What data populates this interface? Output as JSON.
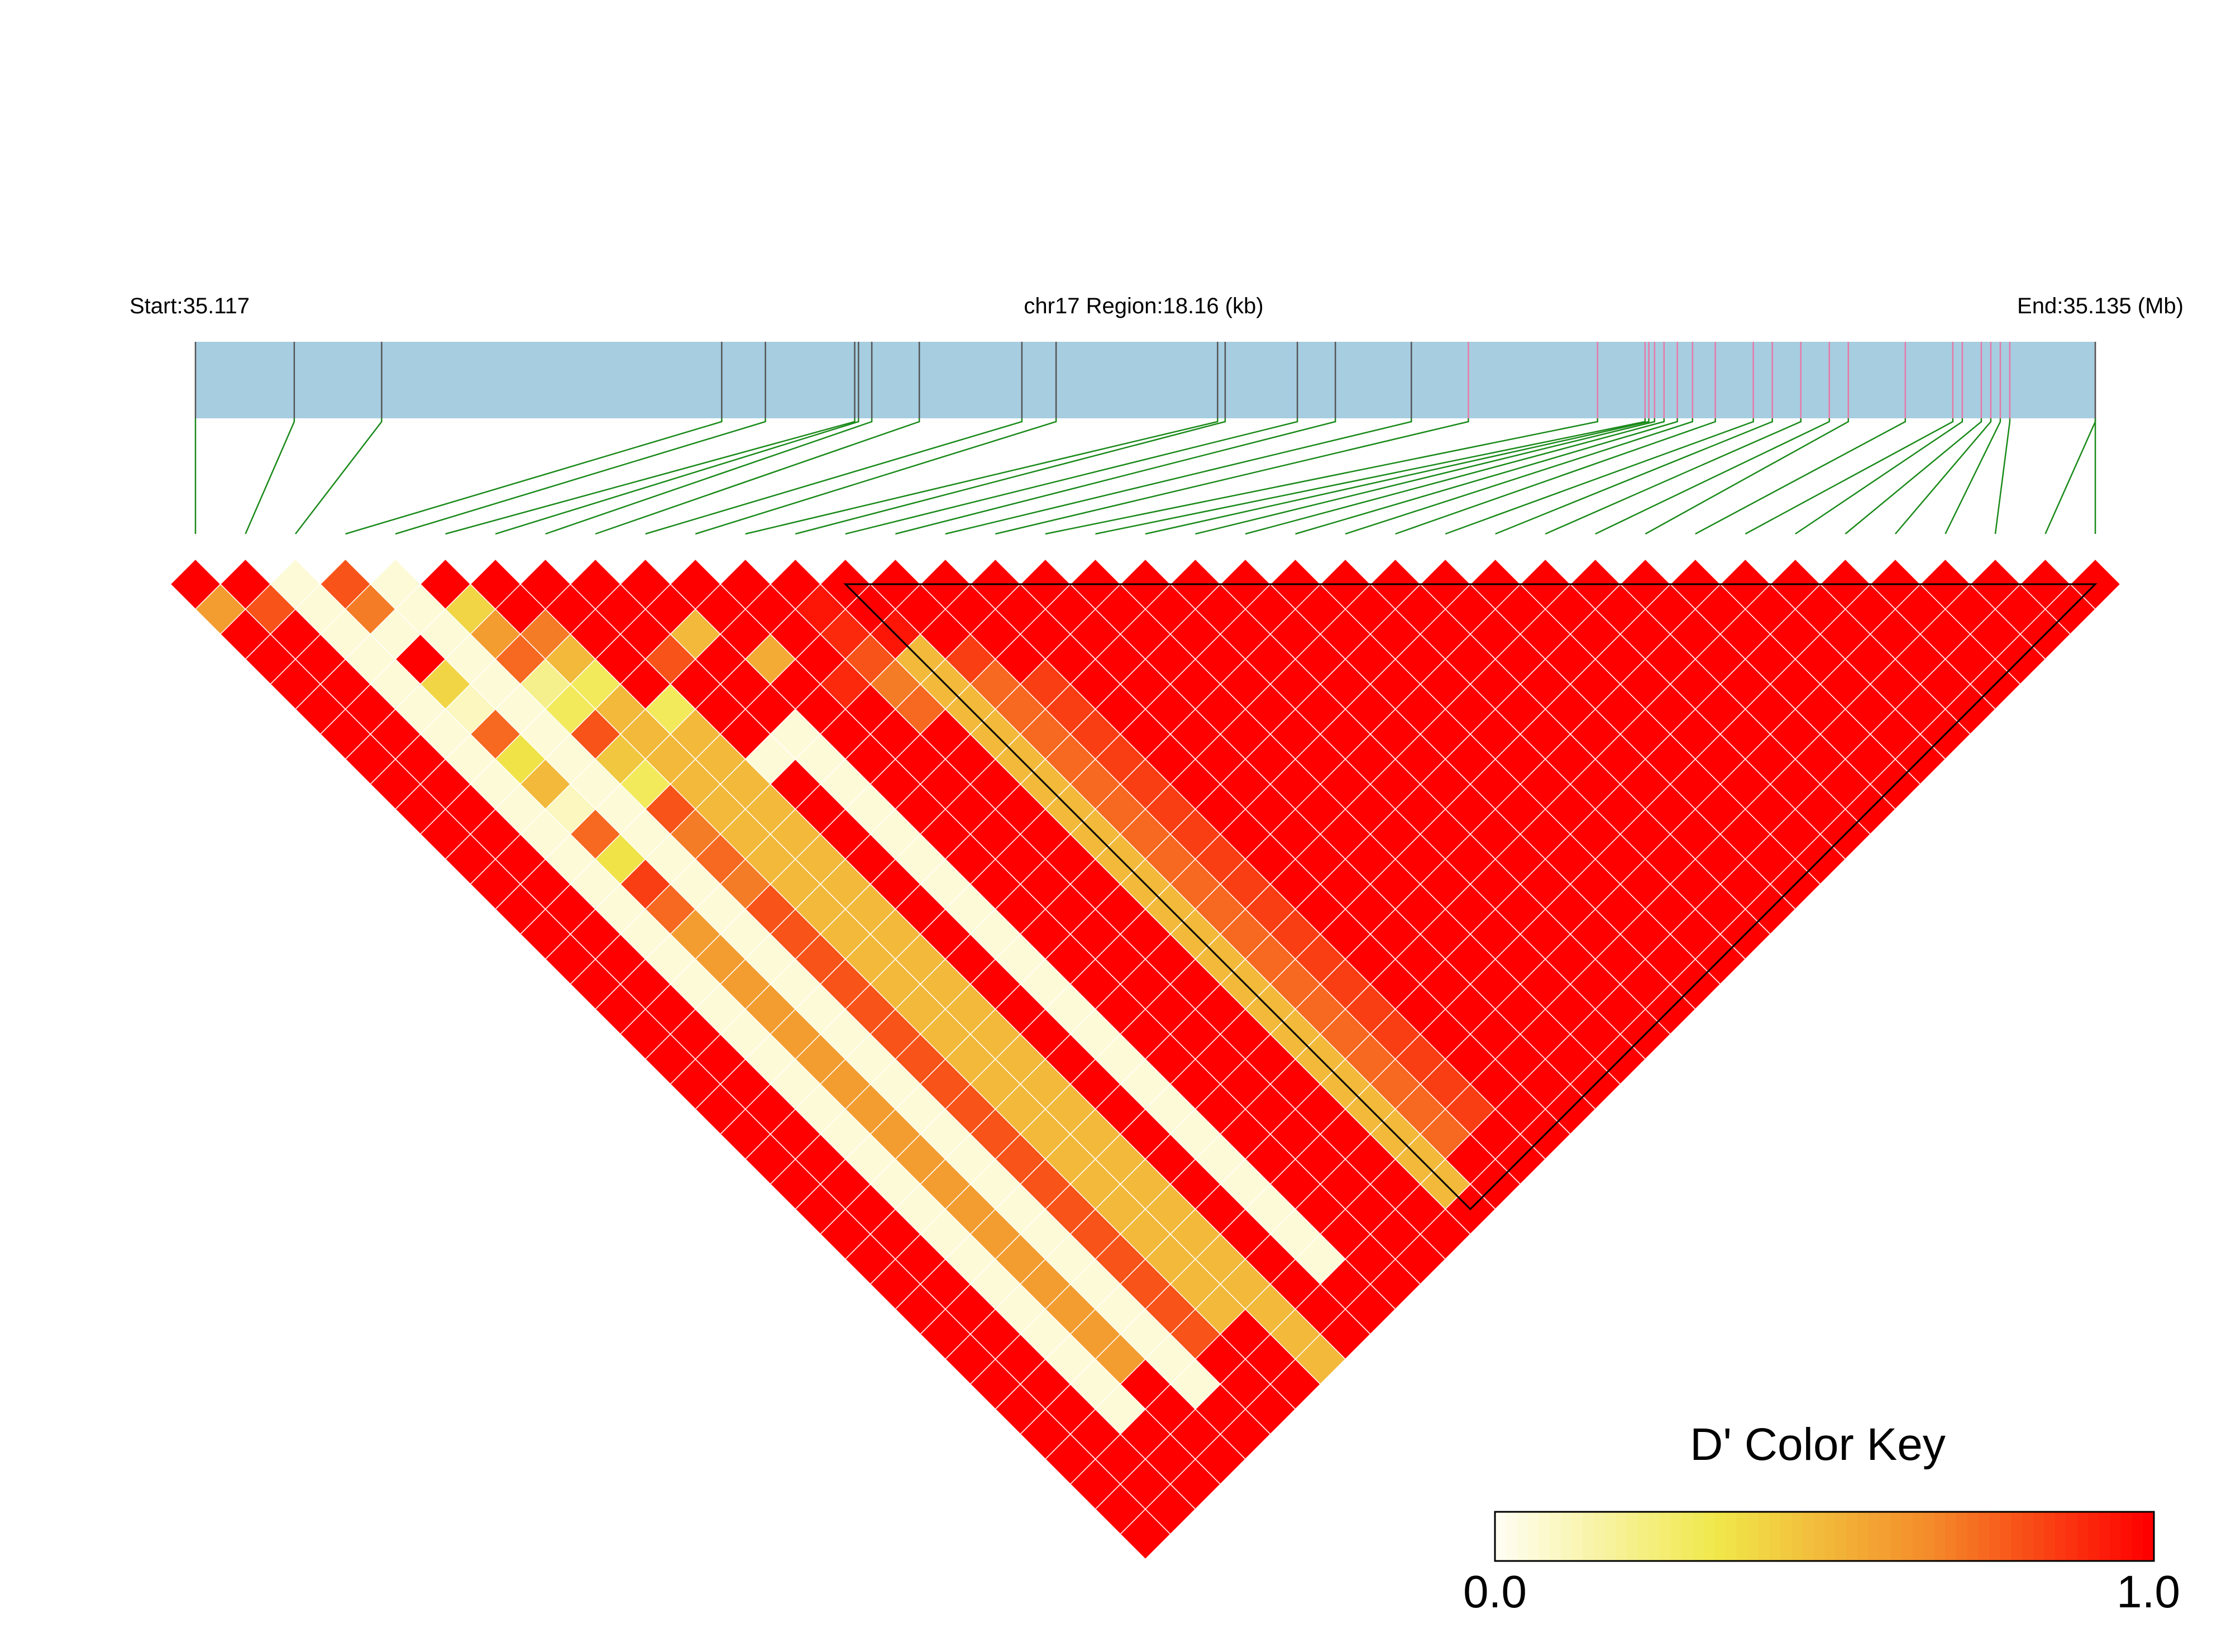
{
  "chart_data": {
    "type": "heatmap",
    "subtype": "linkage-disequilibrium-triangle",
    "title": "",
    "header": {
      "start_label": "Start:35.117",
      "region_label": "chr17 Region:18.16 (kb)",
      "end_label": "End:35.135 (Mb)"
    },
    "n_snps": 39,
    "snp_track_positions": [
      0.0,
      0.052,
      0.098,
      0.277,
      0.3,
      0.347,
      0.349,
      0.356,
      0.381,
      0.435,
      0.453,
      0.538,
      0.542,
      0.58,
      0.6,
      0.64,
      0.67,
      0.738,
      0.763,
      0.765,
      0.768,
      0.773,
      0.78,
      0.788,
      0.8,
      0.82,
      0.83,
      0.845,
      0.86,
      0.87,
      0.9,
      0.925,
      0.93,
      0.94,
      0.945,
      0.95,
      0.955,
      1.0,
      1.0
    ],
    "snp_track_highlighted": [
      16,
      17,
      18,
      19,
      20,
      21,
      22,
      23,
      24,
      25,
      26,
      27,
      28,
      29,
      30,
      31,
      32,
      33,
      34,
      35,
      36,
      37
    ],
    "ld_block": {
      "first_snp": 13,
      "last_snp": 38
    },
    "d_prime_near": [
      [
        1.0,
        0.6
      ],
      [
        1.0,
        0.8
      ],
      [
        0.05,
        0.05,
        0.05,
        0.05,
        0.05,
        0.05,
        0.05,
        0.05,
        0.05,
        0.05,
        0.05,
        0.05,
        0.05,
        0.05,
        0.05,
        0.05,
        0.05,
        0.05,
        0.05,
        0.05,
        0.05,
        0.05,
        0.05,
        0.05,
        0.05,
        0.05,
        0.05,
        0.05,
        0.05,
        0.05,
        0.05,
        0.05,
        0.05,
        0.05
      ],
      [
        0.8,
        0.7,
        0.05,
        1.0,
        0.4,
        0.1,
        0.75,
        0.35,
        0.5,
        0.1,
        0.75,
        0.35,
        0.85,
        0.75,
        0.6,
        0.6,
        0.6,
        0.6,
        0.6,
        0.6,
        0.6,
        0.6,
        0.6,
        0.6,
        0.6,
        0.6,
        0.6,
        0.6,
        0.6,
        0.6,
        0.6,
        0.6
      ],
      [
        0.05,
        0.05,
        0.05,
        0.05,
        0.05,
        0.05,
        0.05,
        0.05,
        0.05,
        0.05,
        0.05,
        0.05,
        0.05,
        0.05,
        0.05,
        0.05,
        0.05,
        0.05,
        0.05,
        0.05,
        0.05,
        0.05,
        0.05,
        0.05,
        0.05,
        0.05,
        0.05,
        0.05,
        0.05,
        0.05,
        0.05,
        0.05,
        0.05
      ],
      [
        1.0,
        0.4,
        0.6,
        0.75,
        0.2,
        0.3,
        0.8,
        0.45,
        0.3,
        0.8,
        0.7,
        0.75,
        0.7,
        0.8,
        0.8,
        0.8,
        0.8,
        0.8,
        0.8,
        0.8,
        0.8,
        0.8,
        0.8,
        0.8,
        0.8,
        0.8,
        0.8,
        0.8,
        0.8,
        0.8,
        0.8
      ],
      [
        1.0,
        1.0,
        0.7,
        0.5,
        0.3,
        0.5,
        0.5,
        0.5,
        0.5,
        0.5,
        0.5,
        0.5,
        0.5,
        0.5,
        0.5,
        0.5,
        0.5,
        0.5,
        0.5,
        0.5,
        0.5,
        0.5,
        0.5,
        0.5,
        0.5,
        0.5,
        0.5,
        0.5,
        0.5,
        0.5
      ],
      [
        1.0,
        1.0,
        1.0,
        1.0,
        1.0,
        0.3,
        0.5,
        0.5,
        0.5,
        0.5,
        0.5,
        0.5,
        0.5,
        0.5,
        0.5,
        0.5,
        0.5,
        0.5,
        0.5,
        0.5,
        0.5,
        0.5,
        0.5,
        0.5,
        0.5,
        0.5,
        0.5,
        0.5,
        0.5,
        0.5,
        0.5,
        0.5
      ],
      [
        1.0,
        1.0,
        1.0,
        0.8,
        1.0,
        1.0,
        1.0,
        0.05,
        1.0,
        1.0,
        1.0,
        1.0,
        1.0,
        1.0,
        1.0,
        1.0,
        1.0,
        1.0,
        1.0,
        1.0,
        1.0,
        1.0,
        1.0,
        1.0,
        1.0,
        1.0,
        1.0,
        1.0,
        1.0,
        1.0
      ],
      [
        1.0,
        1.0,
        0.5,
        1.0,
        1.0,
        1.0,
        0.05,
        0.05,
        0.05,
        0.05,
        0.05,
        0.05,
        0.05,
        0.05,
        0.05,
        0.05,
        0.05,
        0.05,
        0.05,
        0.05,
        0.05,
        0.05,
        0.05,
        0.05,
        0.05,
        0.05,
        0.05,
        0.05
      ],
      [
        1.0,
        1.0,
        1.0,
        0.55,
        1.0,
        1.0,
        1.0,
        1.0,
        1.0,
        1.0,
        1.0,
        1.0,
        1.0,
        1.0,
        1.0,
        1.0,
        1.0,
        1.0,
        1.0,
        1.0,
        1.0,
        1.0,
        1.0,
        1.0,
        1.0,
        1.0,
        1.0
      ],
      [
        1.0,
        1.0,
        1.0,
        1.0,
        0.9,
        1.0,
        1.0,
        1.0,
        1.0,
        1.0,
        1.0,
        1.0,
        1.0,
        1.0,
        1.0,
        1.0,
        1.0,
        1.0,
        1.0,
        1.0,
        1.0,
        1.0,
        1.0,
        1.0,
        1.0,
        1.0
      ],
      [
        1.0,
        0.95,
        0.9,
        0.8,
        0.7,
        0.75,
        1.0,
        1.0,
        1.0,
        1.0,
        1.0,
        1.0,
        1.0,
        1.0,
        1.0,
        1.0,
        1.0,
        1.0,
        1.0,
        1.0,
        1.0,
        1.0,
        1.0,
        1.0
      ],
      [
        1.0,
        1.0,
        0.95,
        0.5,
        0.5,
        0.5,
        0.5,
        0.5,
        0.5,
        0.5,
        0.5,
        0.5,
        0.5,
        0.5,
        0.5,
        0.5,
        0.5,
        0.5,
        0.5,
        0.5,
        0.5,
        0.5,
        0.5,
        0.5,
        0.5
      ],
      [
        1.0,
        1.0,
        1.0,
        0.85,
        0.75,
        0.75,
        0.75,
        0.75,
        0.75,
        0.75,
        0.75,
        0.75,
        0.75,
        0.75,
        0.75,
        0.75,
        0.75,
        0.75,
        0.75,
        0.75,
        0.75,
        0.75,
        0.75
      ],
      [
        1.0,
        1.0,
        1.0,
        1.0,
        0.85,
        0.85,
        0.85,
        0.85,
        0.85,
        0.85,
        0.85,
        0.85,
        0.85,
        0.85,
        0.85,
        0.85,
        0.85,
        0.85,
        0.85,
        0.85,
        0.85,
        0.85
      ]
    ],
    "d_prime_default": 1.0,
    "color_key": {
      "title": "D' Color Key",
      "min_label": "0.0",
      "max_label": "1.0",
      "range": [
        0,
        1
      ],
      "stops": [
        "#fffdf0",
        "#f0e84a",
        "#f48a2a",
        "#ff0000"
      ]
    },
    "colors": {
      "track_fill": "#a6cde0",
      "track_tick": "#555555",
      "track_tick_highlight": "#e87aa8",
      "connector": "#1a8a1a",
      "cell_grid": "#ffffff",
      "block_outline": "#000000"
    }
  }
}
